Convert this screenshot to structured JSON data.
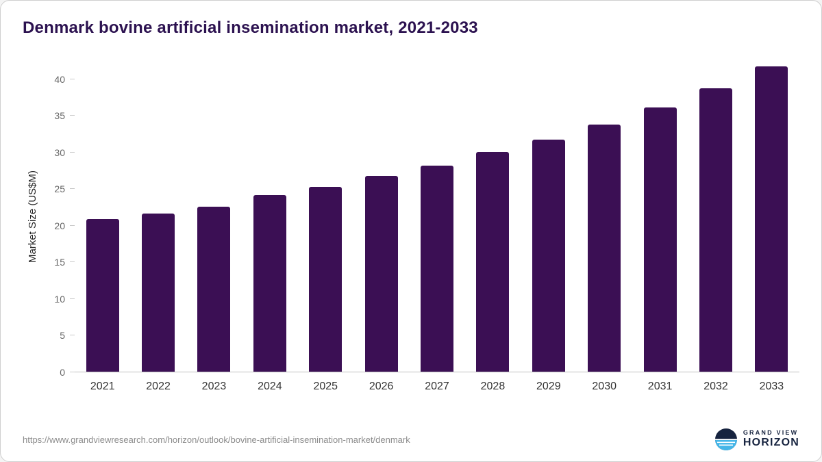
{
  "chart_data": {
    "type": "bar",
    "title": "Denmark bovine artificial insemination market, 2021-2033",
    "xlabel": "",
    "ylabel": "Market Size (US$M)",
    "categories": [
      "2021",
      "2022",
      "2023",
      "2024",
      "2025",
      "2026",
      "2027",
      "2028",
      "2029",
      "2030",
      "2031",
      "2032",
      "2033"
    ],
    "values": [
      20.8,
      21.6,
      22.5,
      24.1,
      25.2,
      26.7,
      28.1,
      30.0,
      31.7,
      33.7,
      36.1,
      38.7,
      41.7
    ],
    "yticks": [
      0,
      5,
      10,
      15,
      20,
      25,
      30,
      35,
      40
    ],
    "ylim": [
      0,
      42.5
    ],
    "grid": false,
    "legend": "none",
    "bar_color": "#3b0f54"
  },
  "footer": {
    "source_url": "https://www.grandviewresearch.com/horizon/outlook/bovine-artificial-insemination-market/denmark",
    "logo_top": "GRAND VIEW",
    "logo_bottom": "HORIZON"
  },
  "colors": {
    "title": "#2c1250",
    "bar": "#3b0f54",
    "axis_line": "#bfbfbf",
    "logo_navy": "#16233f",
    "logo_blue": "#45b6e8"
  }
}
